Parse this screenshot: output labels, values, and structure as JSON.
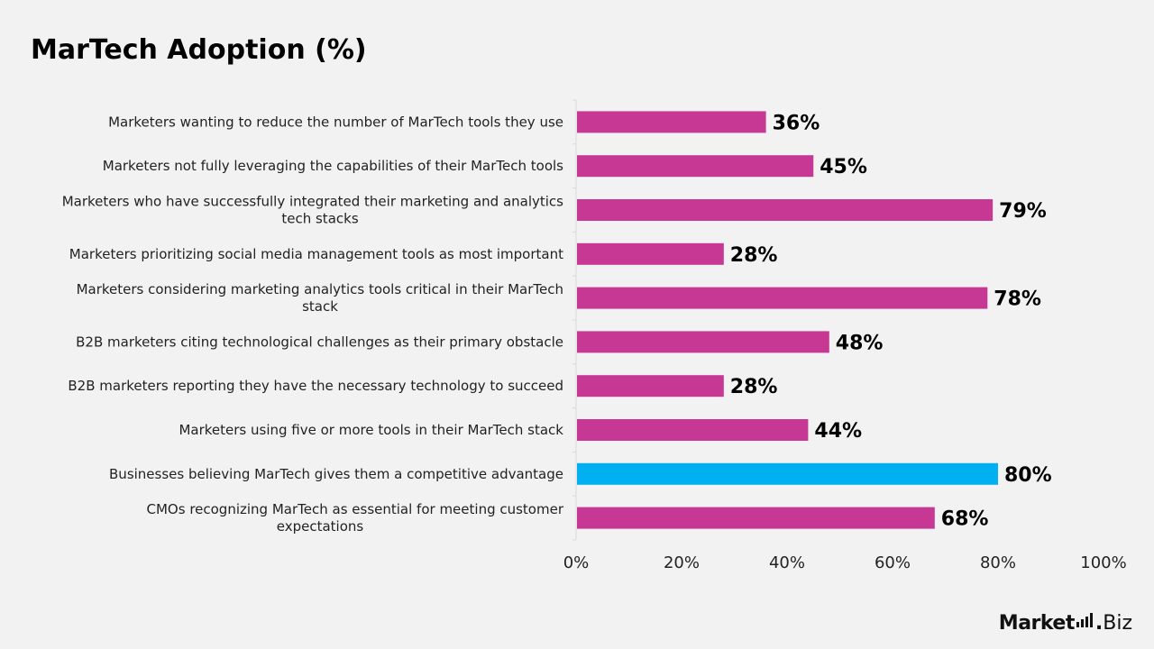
{
  "title": "MarTech Adoption (%)",
  "chart_data": {
    "type": "bar",
    "orientation": "horizontal",
    "title": "MarTech Adoption (%)",
    "categories": [
      [
        "Marketers wanting to reduce the number of MarTech tools they use"
      ],
      [
        "Marketers not fully leveraging the capabilities of their MarTech tools"
      ],
      [
        "Marketers who have successfully integrated their marketing and analytics",
        "tech stacks"
      ],
      [
        "Marketers prioritizing social media management tools as most important"
      ],
      [
        "Marketers considering marketing analytics tools critical in their MarTech",
        "stack"
      ],
      [
        "B2B marketers citing technological challenges as their primary obstacle"
      ],
      [
        "B2B marketers reporting they have the necessary technology to succeed"
      ],
      [
        "Marketers using five or more tools in their MarTech stack"
      ],
      [
        "Businesses believing MarTech gives them a competitive advantage"
      ],
      [
        "CMOs recognizing MarTech as essential for meeting customer",
        "expectations"
      ]
    ],
    "values": [
      36,
      45,
      79,
      28,
      78,
      48,
      28,
      44,
      80,
      68
    ],
    "value_labels": [
      "36%",
      "45%",
      "79%",
      "28%",
      "78%",
      "48%",
      "28%",
      "44%",
      "80%",
      "68%"
    ],
    "colors": [
      "#c63893",
      "#c63893",
      "#c63893",
      "#c63893",
      "#c63893",
      "#c63893",
      "#c63893",
      "#c63893",
      "#00b0f0",
      "#c63893"
    ],
    "xlim": [
      0,
      100
    ],
    "xticks": [
      0,
      20,
      40,
      60,
      80,
      100
    ],
    "xtick_labels": [
      "0%",
      "20%",
      "40%",
      "60%",
      "80%",
      "100%"
    ],
    "grid": false,
    "axis_color": "#d9d9d9"
  },
  "logo": {
    "word": "Market",
    "dot": ".",
    "suffix": "Biz"
  }
}
